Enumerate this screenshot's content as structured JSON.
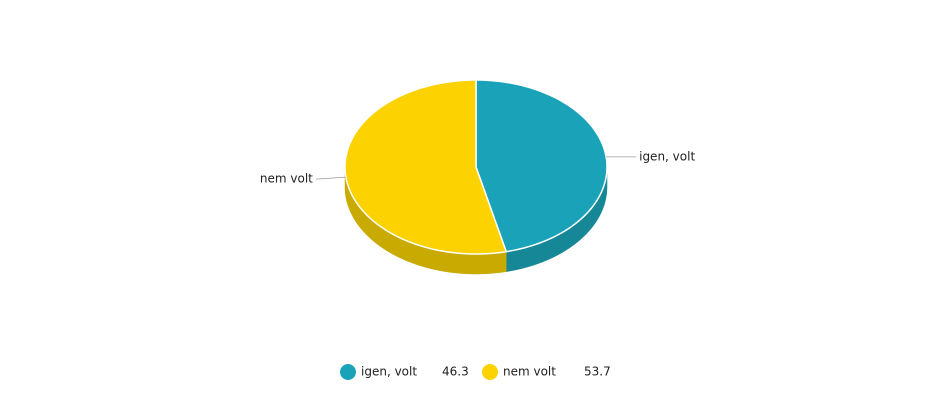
{
  "chart_data": {
    "type": "pie",
    "categories": [
      "igen, volt",
      "nem volt"
    ],
    "values": [
      46.3,
      53.7
    ],
    "colors": [
      "#1aa3b8",
      "#fcd200"
    ],
    "side_colors": [
      "#158797",
      "#c9aa00"
    ],
    "legend": "bottom"
  }
}
